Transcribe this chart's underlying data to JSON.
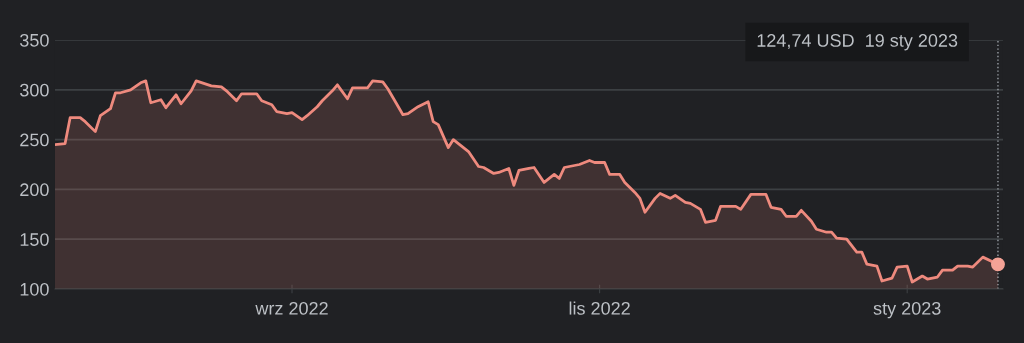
{
  "chart_data": {
    "type": "area",
    "x": [
      "2022-07-16",
      "2022-07-18",
      "2022-07-19",
      "2022-07-21",
      "2022-07-22",
      "2022-07-24",
      "2022-07-25",
      "2022-07-27",
      "2022-07-28",
      "2022-07-29",
      "2022-07-31",
      "2022-08-02",
      "2022-08-03",
      "2022-08-04",
      "2022-08-06",
      "2022-08-07",
      "2022-08-09",
      "2022-08-10",
      "2022-08-12",
      "2022-08-13",
      "2022-08-16",
      "2022-08-18",
      "2022-08-19",
      "2022-08-21",
      "2022-08-22",
      "2022-08-24",
      "2022-08-25",
      "2022-08-26",
      "2022-08-28",
      "2022-08-29",
      "2022-08-31",
      "2022-09-01",
      "2022-09-03",
      "2022-09-04",
      "2022-09-06",
      "2022-09-07",
      "2022-09-09",
      "2022-09-10",
      "2022-09-12",
      "2022-09-13",
      "2022-09-16",
      "2022-09-17",
      "2022-09-19",
      "2022-09-20",
      "2022-09-23",
      "2022-09-24",
      "2022-09-26",
      "2022-09-28",
      "2022-09-29",
      "2022-09-30",
      "2022-10-02",
      "2022-10-03",
      "2022-10-05",
      "2022-10-06",
      "2022-10-08",
      "2022-10-09",
      "2022-10-11",
      "2022-10-12",
      "2022-10-14",
      "2022-10-15",
      "2022-10-16",
      "2022-10-18",
      "2022-10-19",
      "2022-10-21",
      "2022-10-23",
      "2022-10-24",
      "2022-10-25",
      "2022-10-27",
      "2022-10-28",
      "2022-10-30",
      "2022-10-31",
      "2022-11-02",
      "2022-11-03",
      "2022-11-05",
      "2022-11-06",
      "2022-11-08",
      "2022-11-09",
      "2022-11-10",
      "2022-11-12",
      "2022-11-13",
      "2022-11-15",
      "2022-11-16",
      "2022-11-18",
      "2022-11-19",
      "2022-11-21",
      "2022-11-22",
      "2022-11-24",
      "2022-11-25",
      "2022-11-28",
      "2022-11-29",
      "2022-12-01",
      "2022-12-04",
      "2022-12-05",
      "2022-12-07",
      "2022-12-08",
      "2022-12-10",
      "2022-12-11",
      "2022-12-13",
      "2022-12-14",
      "2022-12-16",
      "2022-12-17",
      "2022-12-18",
      "2022-12-20",
      "2022-12-22",
      "2022-12-23",
      "2022-12-24",
      "2022-12-26",
      "2022-12-27",
      "2022-12-29",
      "2022-12-30",
      "2023-01-01",
      "2023-01-02",
      "2023-01-04",
      "2023-01-05",
      "2023-01-07",
      "2023-01-08",
      "2023-01-10",
      "2023-01-11",
      "2023-01-13",
      "2023-01-14",
      "2023-01-16",
      "2023-01-19"
    ],
    "series": [
      {
        "color": "#ee8a7e",
        "values": [
          245,
          246,
          272,
          272,
          268,
          258,
          274,
          281,
          297,
          297,
          300,
          307,
          309,
          287,
          290,
          282,
          295,
          286,
          299,
          309,
          304,
          303,
          299,
          289,
          296,
          296,
          296,
          289,
          285,
          278,
          276,
          277,
          270,
          274,
          283,
          289,
          299,
          305,
          291,
          302,
          302,
          309,
          308,
          301,
          275,
          276,
          283,
          288,
          268,
          265,
          242,
          250,
          242,
          238,
          223,
          222,
          216,
          217,
          221,
          204,
          219,
          221,
          222,
          207,
          215,
          211,
          222,
          224,
          225,
          229,
          227,
          227,
          215,
          215,
          207,
          197,
          191,
          177,
          191,
          196,
          191,
          194,
          187,
          186,
          180,
          167,
          169,
          183,
          183,
          180,
          195,
          195,
          182,
          180,
          173,
          173,
          179,
          168,
          160,
          157,
          157,
          151,
          150,
          137,
          137,
          125,
          123,
          108,
          111,
          122,
          123,
          107,
          113,
          110,
          112,
          119,
          119,
          123,
          123,
          122,
          132,
          124.74
        ]
      },
      {
        "type": "scatter",
        "color": "#f4a296",
        "marker": "circle",
        "x": [
          "2023-01-19"
        ],
        "values": [
          124.74
        ]
      }
    ],
    "xlim": [
      "2022-07-16",
      "2023-01-20"
    ],
    "xticks": [
      {
        "value": "2022-09-01",
        "label": "wrz 2022"
      },
      {
        "value": "2022-11-01",
        "label": "lis 2022"
      },
      {
        "value": "2023-01-01",
        "label": "sty 2023"
      }
    ],
    "ylim": [
      100,
      350
    ],
    "yticks": [
      100,
      150,
      200,
      250,
      300,
      350
    ],
    "grid": "y",
    "ref_lines": [
      {
        "axis": "x",
        "value": "2023-01-19",
        "label": null,
        "color": "#9aa0a6",
        "line_style": "dotted"
      }
    ],
    "annotations": [
      "124,74 USD  19 sty 2023"
    ]
  }
}
